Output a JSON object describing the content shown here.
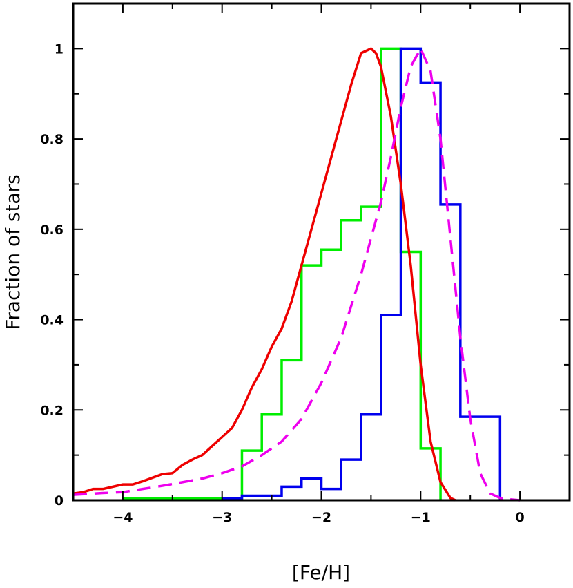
{
  "chart_data": {
    "type": "line",
    "title": "",
    "xlabel": "[Fe/H]",
    "ylabel": "Fraction of stars",
    "xlim": [
      -4.5,
      0.5
    ],
    "ylim": [
      0,
      1.1
    ],
    "x_ticks": [
      "−4",
      "−3",
      "−2",
      "−1",
      "0"
    ],
    "y_ticks": [
      "0",
      "0.2",
      "0.4",
      "0.6",
      "0.8",
      "1"
    ],
    "x_tick_values": [
      -4,
      -3,
      -2,
      -1,
      0
    ],
    "y_tick_values": [
      0,
      0.2,
      0.4,
      0.6,
      0.8,
      1
    ],
    "grid": false,
    "legend": "none",
    "series": [
      {
        "color": "#00ee00",
        "style": "step",
        "bins": [
          [
            -4.0,
            -2.8,
            0.005
          ],
          [
            -2.8,
            -2.6,
            0.11
          ],
          [
            -2.6,
            -2.4,
            0.19
          ],
          [
            -2.4,
            -2.2,
            0.31
          ],
          [
            -2.2,
            -2.0,
            0.52
          ],
          [
            -2.0,
            -1.8,
            0.555
          ],
          [
            -1.8,
            -1.6,
            0.62
          ],
          [
            -1.6,
            -1.4,
            0.65
          ],
          [
            -1.4,
            -1.2,
            1.0
          ],
          [
            -1.2,
            -1.0,
            0.55
          ],
          [
            -1.0,
            -0.8,
            0.115
          ],
          [
            -0.8,
            -0.8,
            0.0
          ]
        ]
      },
      {
        "color": "#0000ee",
        "style": "step",
        "bins": [
          [
            -3.0,
            -2.8,
            0.005
          ],
          [
            -2.8,
            -2.6,
            0.01
          ],
          [
            -2.6,
            -2.4,
            0.01
          ],
          [
            -2.4,
            -2.2,
            0.03
          ],
          [
            -2.2,
            -2.0,
            0.048
          ],
          [
            -2.0,
            -1.8,
            0.025
          ],
          [
            -1.8,
            -1.6,
            0.09
          ],
          [
            -1.6,
            -1.4,
            0.19
          ],
          [
            -1.4,
            -1.2,
            0.41
          ],
          [
            -1.2,
            -1.0,
            1.0
          ],
          [
            -1.0,
            -0.8,
            0.925
          ],
          [
            -0.8,
            -0.6,
            0.655
          ],
          [
            -0.6,
            -0.4,
            0.185
          ],
          [
            -0.4,
            -0.2,
            0.185
          ]
        ]
      },
      {
        "color": "#ee0000",
        "style": "solid",
        "x": [
          -4.5,
          -4.4,
          -4.3,
          -4.2,
          -4.1,
          -4.0,
          -3.9,
          -3.8,
          -3.7,
          -3.6,
          -3.5,
          -3.4,
          -3.3,
          -3.2,
          -3.1,
          -3.0,
          -2.9,
          -2.8,
          -2.7,
          -2.6,
          -2.5,
          -2.4,
          -2.3,
          -2.2,
          -2.1,
          -2.0,
          -1.9,
          -1.8,
          -1.7,
          -1.6,
          -1.5,
          -1.45,
          -1.4,
          -1.3,
          -1.2,
          -1.1,
          -1.0,
          -0.9,
          -0.8,
          -0.7,
          -0.65
        ],
        "y": [
          0.015,
          0.018,
          0.025,
          0.025,
          0.03,
          0.035,
          0.035,
          0.042,
          0.05,
          0.058,
          0.06,
          0.078,
          0.09,
          0.1,
          0.12,
          0.14,
          0.16,
          0.2,
          0.25,
          0.29,
          0.34,
          0.38,
          0.44,
          0.52,
          0.6,
          0.68,
          0.76,
          0.84,
          0.92,
          0.99,
          1.0,
          0.99,
          0.96,
          0.85,
          0.7,
          0.52,
          0.3,
          0.13,
          0.04,
          0.005,
          0.0
        ]
      },
      {
        "color": "#ee00ee",
        "style": "dashed",
        "x": [
          -4.5,
          -4.2,
          -4.0,
          -3.8,
          -3.6,
          -3.4,
          -3.2,
          -3.0,
          -2.8,
          -2.6,
          -2.4,
          -2.2,
          -2.0,
          -1.8,
          -1.6,
          -1.4,
          -1.3,
          -1.2,
          -1.1,
          -1.0,
          -0.9,
          -0.8,
          -0.7,
          -0.6,
          -0.5,
          -0.4,
          -0.3,
          -0.2,
          -0.1,
          0.0
        ],
        "y": [
          0.012,
          0.016,
          0.018,
          0.025,
          0.032,
          0.04,
          0.048,
          0.06,
          0.075,
          0.1,
          0.13,
          0.18,
          0.26,
          0.36,
          0.5,
          0.66,
          0.76,
          0.87,
          0.96,
          1.0,
          0.95,
          0.8,
          0.58,
          0.36,
          0.18,
          0.06,
          0.015,
          0.005,
          0.002,
          0.0
        ]
      }
    ]
  }
}
